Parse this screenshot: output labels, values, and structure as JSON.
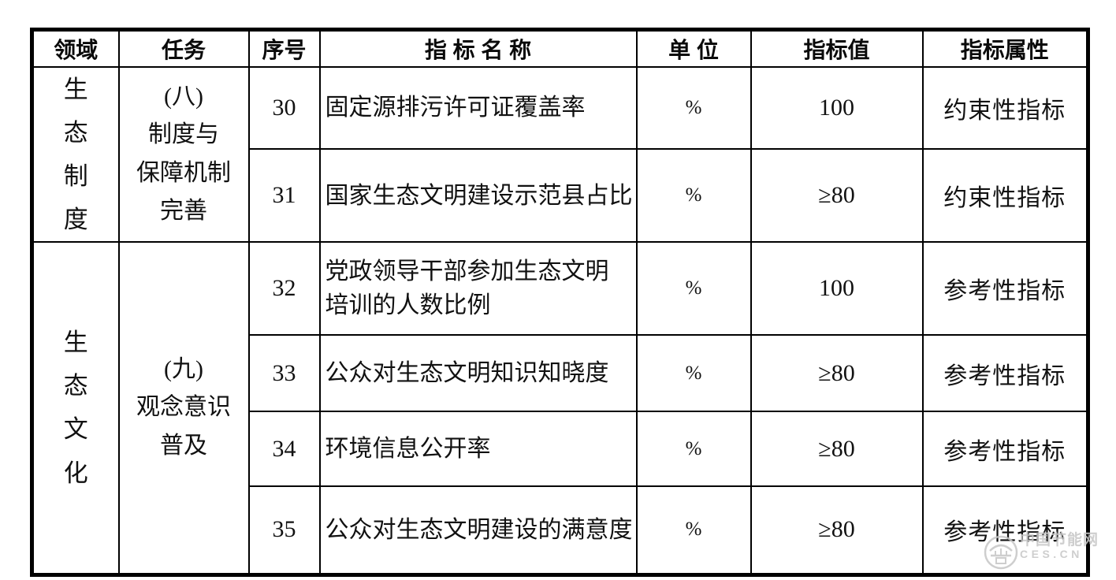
{
  "table": {
    "headers": [
      "领域",
      "任务",
      "序号",
      "指 标 名 称",
      "单 位",
      "指标值",
      "指标属性"
    ],
    "groups": [
      {
        "domain": "生\n态\n制\n度",
        "task": "(八)\n制度与\n保障机制\n完善",
        "rows": [
          {
            "no": "30",
            "name": "固定源排污许可证覆盖率",
            "unit": "%",
            "value": "100",
            "attr": "约束性指标"
          },
          {
            "no": "31",
            "name": "国家生态文明建设示范县占比",
            "unit": "%",
            "value": "≥80",
            "attr": "约束性指标"
          }
        ]
      },
      {
        "domain": "生\n态\n文\n化",
        "task": "(九)\n观念意识\n普及",
        "rows": [
          {
            "no": "32",
            "name": "党政领导干部参加生态文明\n培训的人数比例",
            "unit": "%",
            "value": "100",
            "attr": "参考性指标"
          },
          {
            "no": "33",
            "name": "公众对生态文明知识知晓度",
            "unit": "%",
            "value": "≥80",
            "attr": "参考性指标"
          },
          {
            "no": "34",
            "name": "环境信息公开率",
            "unit": "%",
            "value": "≥80",
            "attr": "参考性指标"
          },
          {
            "no": "35",
            "name": "公众对生态文明建设的满意度",
            "unit": "%",
            "value": "≥80",
            "attr": "参考性指标"
          }
        ]
      }
    ]
  },
  "watermark": {
    "site_name": "中国节能网",
    "site_url": "CES.CN"
  }
}
